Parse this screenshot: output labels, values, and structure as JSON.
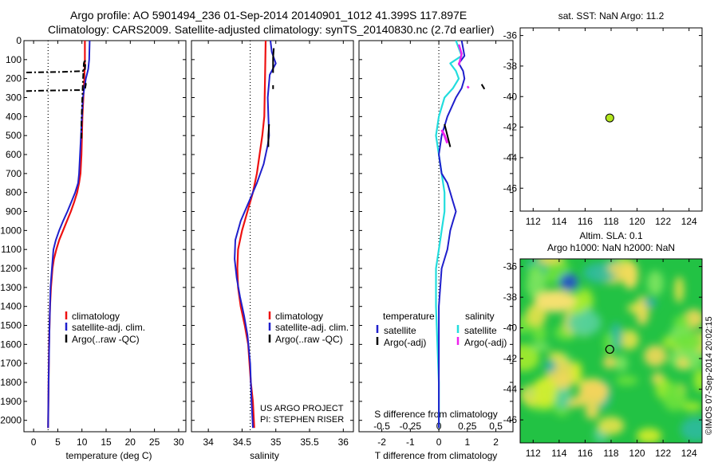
{
  "figure": {
    "title_line1": "Argo profile: AO 5901494_236 01-Sep-2014 20140901_1012 41.399S 117.897E",
    "title_line2": "Climatology: CARS2009. Satellite-adjusted climatology: synTS_20140830.nc (2.7d earlier)",
    "project_line1": "US ARGO PROJECT",
    "project_line2": "PI: STEPHEN RISER",
    "watermark": "©IMOS 07-Sep-2014 20:02:15"
  },
  "colors": {
    "climatology": "#ee1111",
    "satellite": "#1f1fcc",
    "argo": "#000000",
    "sat_T_diff": "#22dddd",
    "argo_S_diff": "#ee22ee",
    "marker": "#b2e61e",
    "map_bg": "#22c244"
  },
  "chart_data": [
    {
      "id": "temperature",
      "type": "line",
      "xlabel": "temperature (deg C)",
      "ylabel": "",
      "xlim": [
        -2,
        31.5
      ],
      "ylim": [
        2060,
        0
      ],
      "xticks": [
        0,
        5,
        10,
        15,
        20,
        25,
        30
      ],
      "yticks": [
        0,
        100,
        200,
        300,
        400,
        500,
        600,
        700,
        800,
        900,
        1000,
        1100,
        1200,
        1300,
        1400,
        1500,
        1600,
        1700,
        1800,
        1900,
        2000
      ],
      "reference_line_x": 3,
      "legend": [
        "climatology",
        "satellite-adj. clim.",
        "Argo(..raw -QC)"
      ],
      "legend_position": "lower-left",
      "series": [
        {
          "name": "climatology",
          "x": [
            10.6,
            10.6,
            10.5,
            10.4,
            10.3,
            10.1,
            10.0,
            9.9,
            9.7,
            9.4,
            9.0,
            8.4,
            7.7,
            6.9,
            6.1,
            5.3,
            4.7,
            4.2,
            3.9,
            3.6,
            3.4,
            3.2,
            3.1,
            3.0
          ],
          "y": [
            0,
            100,
            200,
            250,
            300,
            400,
            500,
            600,
            700,
            750,
            800,
            850,
            900,
            950,
            1000,
            1050,
            1100,
            1150,
            1200,
            1300,
            1400,
            1600,
            1800,
            2040
          ]
        },
        {
          "name": "satellite-adj. clim.",
          "x": [
            11.6,
            11.5,
            11.3,
            10.8,
            10.2,
            10.0,
            9.8,
            9.6,
            9.4,
            9.2,
            8.6,
            7.8,
            7.0,
            6.1,
            5.3,
            4.6,
            4.1,
            3.8,
            3.5,
            3.3,
            3.1,
            3.0
          ],
          "y": [
            0,
            100,
            150,
            200,
            300,
            400,
            500,
            600,
            700,
            750,
            800,
            850,
            900,
            950,
            1000,
            1050,
            1100,
            1200,
            1300,
            1500,
            1800,
            2040
          ]
        },
        {
          "name": "Argo(..raw -QC)",
          "x": [
            -1.5,
            2,
            6,
            10.4,
            10.6,
            10.7,
            10.6,
            10.4,
            10.2,
            10.0,
            9.9,
            9.9
          ],
          "y": [
            168,
            166,
            165,
            160,
            160,
            120,
            100,
            120,
            220,
            360,
            440,
            520
          ]
        },
        {
          "name": "Argo flagged 2",
          "x": [
            -1.5,
            2,
            6,
            10.5,
            10.6,
            10.8,
            10.7
          ],
          "y": [
            266,
            263,
            262,
            260,
            258,
            230,
            215
          ]
        }
      ]
    },
    {
      "id": "salinity",
      "type": "line",
      "xlabel": "salinity",
      "ylabel": "",
      "xlim": [
        33.75,
        36.15
      ],
      "ylim": [
        2060,
        0
      ],
      "xticks": [
        34,
        34.5,
        35,
        35.5,
        36
      ],
      "reference_line_x": 34.62,
      "legend": [
        "climatology",
        "satellite-adj. clim.",
        "Argo(..raw -QC)"
      ],
      "legend_position": "lower-left",
      "series": [
        {
          "name": "climatology",
          "x": [
            34.85,
            34.84,
            34.83,
            34.8,
            34.76,
            34.72,
            34.66,
            34.58,
            34.5,
            34.44,
            34.43,
            34.44,
            34.48,
            34.54,
            34.59,
            34.63,
            34.66,
            34.68
          ],
          "y": [
            0,
            200,
            400,
            500,
            600,
            700,
            800,
            900,
            1000,
            1100,
            1200,
            1300,
            1400,
            1500,
            1600,
            1800,
            1900,
            2040
          ]
        },
        {
          "name": "satellite-adj. clim.",
          "x": [
            34.92,
            34.94,
            35.0,
            34.91,
            34.88,
            34.89,
            34.9,
            34.88,
            34.82,
            34.72,
            34.6,
            34.48,
            34.4,
            34.39,
            34.42,
            34.47,
            34.53,
            34.58,
            34.62,
            34.64,
            34.66
          ],
          "y": [
            0,
            60,
            120,
            180,
            300,
            400,
            500,
            550,
            650,
            750,
            850,
            950,
            1050,
            1150,
            1250,
            1350,
            1450,
            1550,
            1700,
            1900,
            2040
          ]
        },
        {
          "name": "Argo(..raw -QC)",
          "x": [
            34.97,
            34.96,
            34.96
          ],
          "y": [
            40,
            90,
            170
          ]
        },
        {
          "name": "Argo segment 2",
          "x": [
            34.96,
            34.96
          ],
          "y": [
            235,
            255
          ]
        },
        {
          "name": "Argo segment 3",
          "x": [
            34.9,
            34.89,
            34.89
          ],
          "y": [
            440,
            500,
            560
          ]
        }
      ]
    },
    {
      "id": "differences",
      "type": "line",
      "xlabel": "T difference from climatology",
      "x2label": "S difference from climatology",
      "xlim": [
        -2.8,
        2.6
      ],
      "ylim": [
        2060,
        0
      ],
      "xticks": [
        -2,
        -1,
        0,
        1,
        2
      ],
      "x2ticks": [
        -0.5,
        -0.25,
        0,
        0.25,
        0.5
      ],
      "reference_line_x": 0,
      "legend_header": [
        "temperature",
        "salinity"
      ],
      "legend": [
        "satellite",
        "Argo(-adj)",
        "satellite",
        "Argo(-adj)"
      ],
      "legend_position": "lower-center",
      "series": [
        {
          "name": "satellite (T)",
          "x": [
            0.8,
            0.9,
            0.7,
            0.85,
            0.9,
            0.8,
            0.6,
            0.3,
            0.1,
            0.0,
            0.1,
            0.3,
            0.4,
            0.5,
            0.6,
            0.5,
            0.4,
            0.3,
            0.1,
            0.0,
            0.0,
            0.0
          ],
          "y": [
            0,
            80,
            120,
            160,
            200,
            250,
            300,
            400,
            500,
            600,
            700,
            750,
            800,
            850,
            900,
            950,
            1000,
            1100,
            1200,
            1400,
            1700,
            2040
          ]
        },
        {
          "name": "satellite (S)",
          "x": [
            0.6,
            0.8,
            0.4,
            0.6,
            0.7,
            0.5,
            0.2,
            0.0,
            -0.1,
            0.0,
            0.1,
            0.2,
            0.2,
            0.1,
            0.0,
            -0.1,
            -0.1,
            -0.05,
            0.0,
            0.0
          ],
          "y": [
            0,
            80,
            120,
            160,
            200,
            250,
            300,
            400,
            500,
            600,
            700,
            800,
            900,
            1000,
            1100,
            1200,
            1400,
            1600,
            1800,
            2040
          ]
        },
        {
          "name": "Argo(-adj) (T)",
          "x": [
            0.2,
            0.3,
            0.4
          ],
          "y": [
            440,
            500,
            560
          ]
        },
        {
          "name": "Argo(-adj) (T) b",
          "x": [
            1.5,
            1.6
          ],
          "y": [
            230,
            255
          ]
        },
        {
          "name": "Argo(-adj) (S)",
          "x": [
            0.7,
            0.8,
            0.7
          ],
          "y": [
            20,
            70,
            130
          ]
        },
        {
          "name": "Argo(-adj) (S) b",
          "x": [
            0.1,
            0.2,
            0.3
          ],
          "y": [
            470,
            500,
            540
          ]
        },
        {
          "name": "Argo(-adj) (S) c",
          "x": [
            1.0,
            1.05
          ],
          "y": [
            240,
            250
          ]
        }
      ]
    },
    {
      "id": "sst_map",
      "type": "scatter",
      "title": "sat. SST: NaN Argo: 11.2",
      "xlim": [
        111,
        125
      ],
      "ylim": [
        -47.5,
        -35.5
      ],
      "xticks": [
        112,
        114,
        116,
        118,
        120,
        122,
        124
      ],
      "yticks": [
        -36,
        -38,
        -40,
        -42,
        -44,
        -46
      ],
      "points": [
        {
          "x": 117.897,
          "y": -41.399
        }
      ]
    },
    {
      "id": "sla_map",
      "type": "heatmap",
      "title_line1": "Altim. SLA: 0.1",
      "title_line2": "Argo h1000: NaN h2000: NaN",
      "xlim": [
        111,
        125
      ],
      "ylim": [
        -47.5,
        -35.5
      ],
      "xticks": [
        112,
        114,
        116,
        118,
        120,
        122,
        124
      ],
      "yticks": [
        -36,
        -38,
        -40,
        -42,
        -44,
        -46
      ],
      "points": [
        {
          "x": 117.897,
          "y": -41.399
        }
      ]
    }
  ]
}
